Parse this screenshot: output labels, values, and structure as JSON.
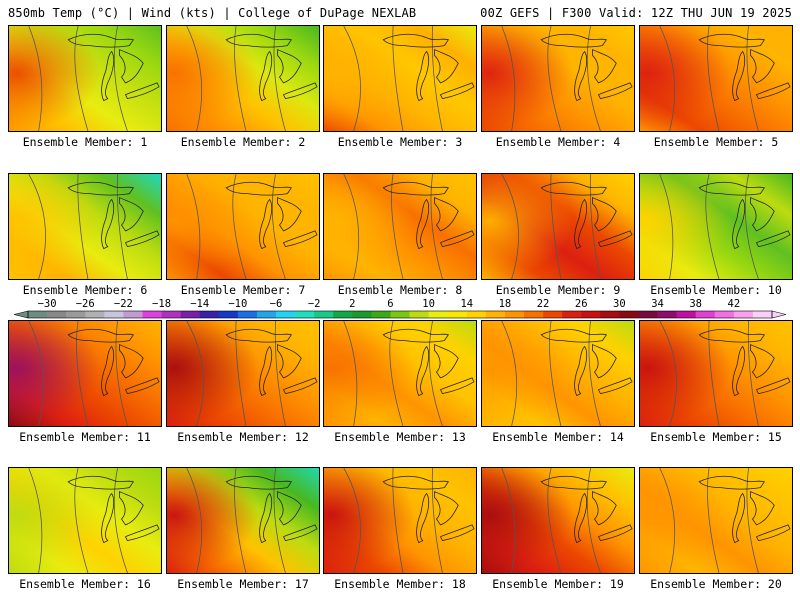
{
  "header": {
    "title_left": "850mb Temp (°C) | Wind (kts) | College of DuPage NEXLAB",
    "title_right": "00Z GEFS | F300 Valid: 12Z THU JUN 19 2025"
  },
  "colorbar": {
    "tick_labels": [
      "−30",
      "−26",
      "−22",
      "−18",
      "−14",
      "−10",
      "−6",
      "−2",
      "2",
      "6",
      "10",
      "14",
      "18",
      "22",
      "26",
      "30",
      "34",
      "38",
      "42"
    ],
    "colors": [
      "#6e8d80",
      "#888888",
      "#9a9a9a",
      "#b0b0b0",
      "#c6c6dc",
      "#c39bd3",
      "#e040e0",
      "#b030c0",
      "#7a20a8",
      "#3a1fa8",
      "#1438c8",
      "#1c6ee6",
      "#22a6e8",
      "#22d2f0",
      "#1ee0c0",
      "#18c888",
      "#12a848",
      "#1a9a2a",
      "#3aa818",
      "#7ac812",
      "#bcdc10",
      "#e8ee10",
      "#f8e800",
      "#ffd200",
      "#ffb400",
      "#ff9400",
      "#f87000",
      "#ec4800",
      "#dc2010",
      "#c81010",
      "#a80c10",
      "#8a0a14",
      "#7a0c3c",
      "#900c6c",
      "#c010a0",
      "#e040d0",
      "#f070e6",
      "#f8a0f0",
      "#fad0f8"
    ]
  },
  "panels": [
    {
      "caption": "Ensemble Member: 1",
      "fill": [
        "#ff9a00",
        "#ffc200",
        "#e8ec10",
        "#c8e010",
        "#9ad810",
        "#60c020"
      ],
      "west": "#ec4800"
    },
    {
      "caption": "Ensemble Member: 2",
      "fill": [
        "#f87000",
        "#ff9400",
        "#ffc200",
        "#dce810",
        "#9ad810",
        "#48b820"
      ],
      "west": "#f87000"
    },
    {
      "caption": "Ensemble Member: 3",
      "fill": [
        "#ec4800",
        "#ff9400",
        "#ffb400",
        "#ffc800",
        "#ffb000",
        "#e8ec10"
      ],
      "west": "#ffb400"
    },
    {
      "caption": "Ensemble Member: 4",
      "fill": [
        "#ec4800",
        "#f87000",
        "#ff9400",
        "#ffb400",
        "#ffb400",
        "#ffc800"
      ],
      "west": "#dc2010"
    },
    {
      "caption": "Ensemble Member: 5",
      "fill": [
        "#ff9400",
        "#ec4800",
        "#f87000",
        "#ff9400",
        "#ffb400",
        "#ffb000"
      ],
      "west": "#dc2010"
    },
    {
      "caption": "Ensemble Member: 6",
      "fill": [
        "#ffc200",
        "#ffb400",
        "#e8ec10",
        "#bcdc10",
        "#60c020",
        "#20d8c0"
      ],
      "west": "#ffc200"
    },
    {
      "caption": "Ensemble Member: 7",
      "fill": [
        "#ff9400",
        "#ec4800",
        "#ff9400",
        "#ffb400",
        "#ffb400",
        "#ffc200"
      ],
      "west": "#ff9400"
    },
    {
      "caption": "Ensemble Member: 8",
      "fill": [
        "#ff9400",
        "#ffb400",
        "#ff9400",
        "#f87000",
        "#ffb400",
        "#ffc200"
      ],
      "west": "#ffb400"
    },
    {
      "caption": "Ensemble Member: 9",
      "fill": [
        "#ffb400",
        "#ec4800",
        "#dc2010",
        "#ec4800",
        "#ffb400",
        "#ffd200"
      ],
      "west": "#ffb400"
    },
    {
      "caption": "Ensemble Member: 10",
      "fill": [
        "#ffd200",
        "#e8ec10",
        "#9ad810",
        "#60c020",
        "#bcdc10",
        "#48b820"
      ],
      "west": "#ffd200"
    },
    {
      "caption": "Ensemble Member: 11",
      "fill": [
        "#8a0a14",
        "#dc2010",
        "#ec4800",
        "#f87000",
        "#ff9400",
        "#ffb400"
      ],
      "west": "#9a1060"
    },
    {
      "caption": "Ensemble Member: 12",
      "fill": [
        "#dc2010",
        "#ec4800",
        "#f87000",
        "#ff9400",
        "#ffb400",
        "#ffc200"
      ],
      "west": "#a80c10"
    },
    {
      "caption": "Ensemble Member: 13",
      "fill": [
        "#ff9400",
        "#ffb400",
        "#ff9400",
        "#ffc200",
        "#ffd200",
        "#bcdc10"
      ],
      "west": "#f87000"
    },
    {
      "caption": "Ensemble Member: 14",
      "fill": [
        "#ffb400",
        "#ffc200",
        "#ff9400",
        "#ffb400",
        "#ffd200",
        "#bcdc10"
      ],
      "west": "#ff9400"
    },
    {
      "caption": "Ensemble Member: 15",
      "fill": [
        "#dc2010",
        "#ec4800",
        "#f87000",
        "#ff9400",
        "#ffb400",
        "#ffc200"
      ],
      "west": "#c81010"
    },
    {
      "caption": "Ensemble Member: 16",
      "fill": [
        "#bcdc10",
        "#e8ec10",
        "#ffd200",
        "#e8ec10",
        "#bcdc10",
        "#9ad810"
      ],
      "west": "#bcdc10"
    },
    {
      "caption": "Ensemble Member: 17",
      "fill": [
        "#dc2010",
        "#f87000",
        "#ffc200",
        "#bcdc10",
        "#48b820",
        "#20d8b0"
      ],
      "west": "#c81010"
    },
    {
      "caption": "Ensemble Member: 18",
      "fill": [
        "#dc2010",
        "#ec4800",
        "#ff9400",
        "#ffb400",
        "#ffc200",
        "#ffb400"
      ],
      "west": "#c81010"
    },
    {
      "caption": "Ensemble Member: 19",
      "fill": [
        "#a80c10",
        "#dc2010",
        "#ec4800",
        "#ff9400",
        "#ffc200",
        "#e8ec10"
      ],
      "west": "#a80c10"
    },
    {
      "caption": "Ensemble Member: 20",
      "fill": [
        "#ff9400",
        "#ffb400",
        "#ff9400",
        "#ffb400",
        "#ffc200",
        "#ffd200"
      ],
      "west": "#ff9400"
    }
  ]
}
